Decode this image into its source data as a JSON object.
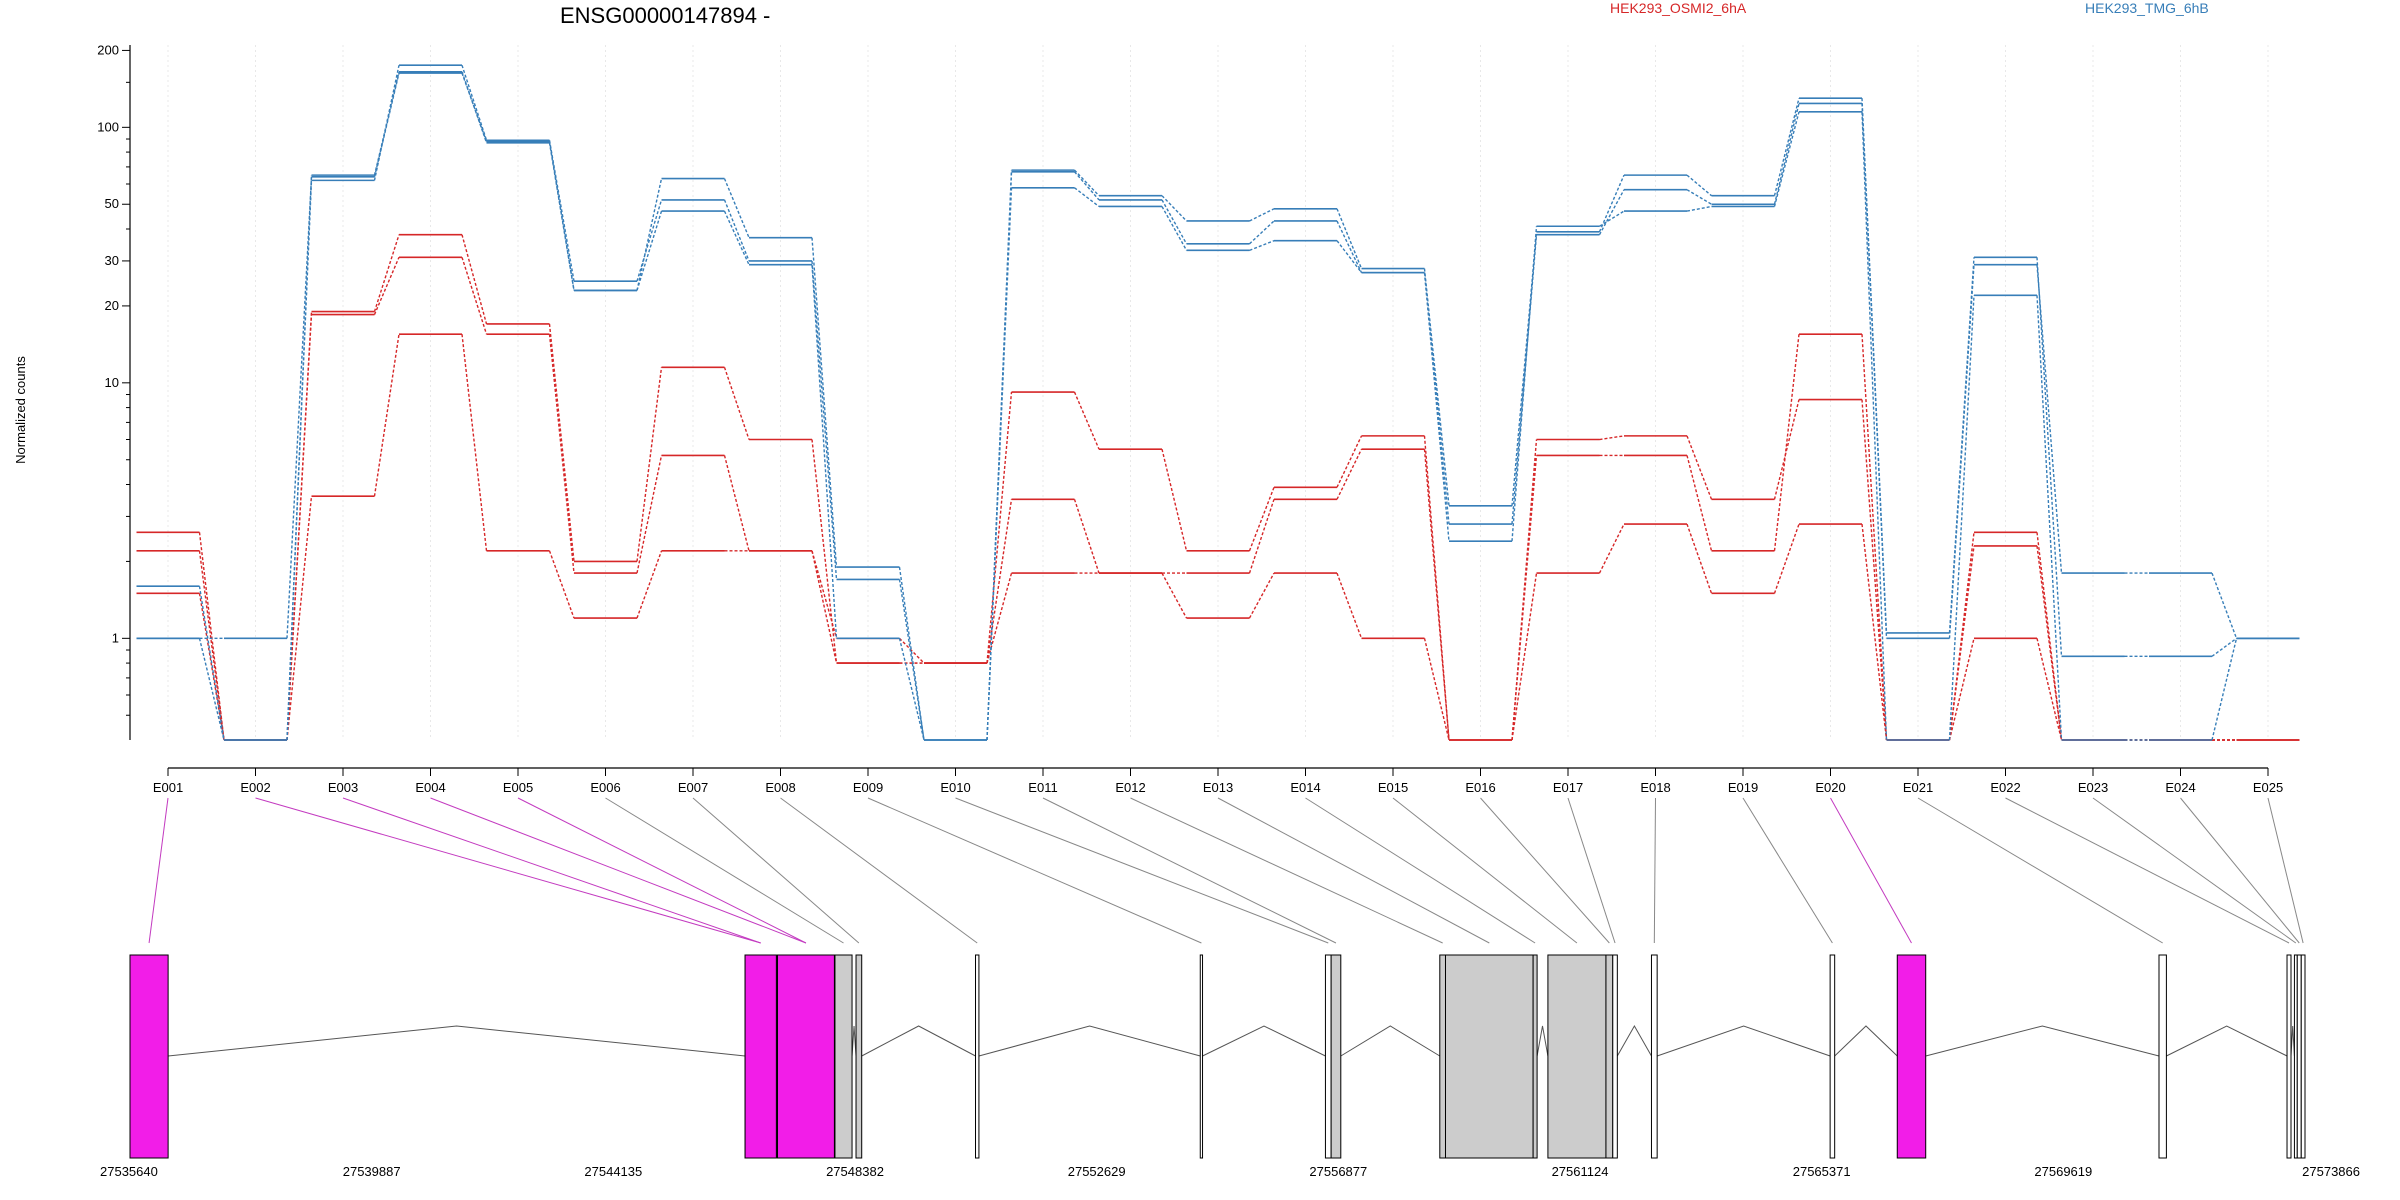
{
  "chart_data": {
    "type": "line",
    "title": "ENSG00000147894 -",
    "ylabel": "Normalized counts",
    "y_scale": "log",
    "ylim": [
      0.4,
      210
    ],
    "y_ticks": [
      1,
      10,
      20,
      30,
      50,
      100,
      200
    ],
    "grid": "vertical dotted at each exon",
    "legend": [
      {
        "name": "HEK293_OSMI2_6hA",
        "color": "#d62728",
        "position": "top-center"
      },
      {
        "name": "HEK293_TMG_6hB",
        "color": "#377eb8",
        "position": "top-right"
      }
    ],
    "categories": [
      "E001",
      "E002",
      "E003",
      "E004",
      "E005",
      "E006",
      "E007",
      "E008",
      "E009",
      "E010",
      "E011",
      "E012",
      "E013",
      "E014",
      "E015",
      "E016",
      "E017",
      "E018",
      "E019",
      "E020",
      "E021",
      "E022",
      "E023",
      "E024",
      "E025"
    ],
    "series": [
      {
        "group": "HEK293_OSMI2_6hA",
        "color": "#d62728",
        "values": [
          2.2,
          0.4,
          18.5,
          31,
          15.5,
          1.8,
          5.2,
          2.2,
          1.0,
          0.8,
          3.5,
          1.8,
          1.8,
          3.5,
          5.5,
          0.4,
          5.2,
          5.2,
          2.2,
          15.5,
          0.4,
          2.3,
          0.4,
          0.4,
          0.4
        ]
      },
      {
        "group": "HEK293_OSMI2_6hA",
        "color": "#d62728",
        "values": [
          2.6,
          0.4,
          19,
          38,
          17,
          2.0,
          11.5,
          6.0,
          0.8,
          0.8,
          9.2,
          5.5,
          2.2,
          3.9,
          6.2,
          0.4,
          6.0,
          6.2,
          3.5,
          8.6,
          0.4,
          2.6,
          0.4,
          0.4,
          0.4
        ]
      },
      {
        "group": "HEK293_OSMI2_6hA",
        "color": "#d62728",
        "values": [
          1.5,
          0.4,
          3.6,
          15.5,
          2.2,
          1.2,
          2.2,
          2.2,
          0.8,
          0.8,
          1.8,
          1.8,
          1.2,
          1.8,
          1.0,
          0.4,
          1.8,
          2.8,
          1.5,
          2.8,
          0.4,
          1.0,
          0.4,
          0.4,
          0.4
        ]
      },
      {
        "group": "HEK293_TMG_6hB",
        "color": "#377eb8",
        "values": [
          1.0,
          0.4,
          65,
          165,
          87,
          23,
          63,
          37,
          1.9,
          0.4,
          68,
          54,
          43,
          48,
          28,
          3.3,
          39,
          65,
          54,
          130,
          1.05,
          31,
          0.85,
          0.85,
          1.0
        ]
      },
      {
        "group": "HEK293_TMG_6hB",
        "color": "#377eb8",
        "values": [
          1.6,
          0.4,
          62,
          175,
          89,
          25,
          52,
          30,
          1.7,
          0.4,
          67,
          52,
          35,
          43,
          27,
          2.8,
          38,
          57,
          50,
          124,
          1.0,
          29,
          1.8,
          1.8,
          1.0
        ]
      },
      {
        "group": "HEK293_TMG_6hB",
        "color": "#377eb8",
        "values": [
          1.0,
          1.0,
          64,
          163,
          88,
          23,
          47,
          29,
          1.0,
          0.4,
          58,
          49,
          33,
          36,
          27,
          2.4,
          41,
          47,
          49,
          115,
          0.4,
          22,
          0.4,
          0.4,
          1.0
        ]
      }
    ],
    "gene_model": {
      "coordinate_ticks": [
        "27535640",
        "27539887",
        "27544135",
        "27548382",
        "27552629",
        "27556877",
        "27561124",
        "27565371",
        "27569619",
        "27573866"
      ],
      "exon_colors": {
        "highlighted": "#f21de8",
        "other": "#cccccc",
        "plain": "#ffffff"
      },
      "exons_genomic": [
        {
          "label": "E001",
          "start": 27535640,
          "end": 27536310,
          "fill": "highlighted"
        },
        {
          "label": "E002",
          "start": 27546450,
          "end": 27547000,
          "fill": "highlighted"
        },
        {
          "label": "E003",
          "start": 27546450,
          "end": 27547000,
          "fill": "highlighted"
        },
        {
          "label": "E004",
          "start": 27547020,
          "end": 27548020,
          "fill": "highlighted"
        },
        {
          "label": "E005",
          "start": 27547020,
          "end": 27548020,
          "fill": "highlighted"
        },
        {
          "label": "E006",
          "start": 27548030,
          "end": 27548330,
          "fill": "other"
        },
        {
          "label": "E007",
          "start": 27548400,
          "end": 27548500,
          "fill": "other"
        },
        {
          "label": "E008",
          "start": 27550500,
          "end": 27550560,
          "fill": "plain"
        },
        {
          "label": "E009",
          "start": 27554450,
          "end": 27554490,
          "fill": "plain"
        },
        {
          "label": "E010",
          "start": 27556650,
          "end": 27556750,
          "fill": "plain"
        },
        {
          "label": "E011",
          "start": 27556750,
          "end": 27556920,
          "fill": "other"
        },
        {
          "label": "E012",
          "start": 27558660,
          "end": 27558760,
          "fill": "other"
        },
        {
          "label": "E013",
          "start": 27558760,
          "end": 27560300,
          "fill": "other"
        },
        {
          "label": "E014",
          "start": 27560300,
          "end": 27560370,
          "fill": "other"
        },
        {
          "label": "E015",
          "start": 27560560,
          "end": 27561580,
          "fill": "other"
        },
        {
          "label": "E016",
          "start": 27561580,
          "end": 27561700,
          "fill": "other"
        },
        {
          "label": "E017",
          "start": 27561700,
          "end": 27561780,
          "fill": "plain"
        },
        {
          "label": "E018",
          "start": 27562380,
          "end": 27562480,
          "fill": "plain"
        },
        {
          "label": "E019",
          "start": 27565520,
          "end": 27565600,
          "fill": "plain"
        },
        {
          "label": "E020",
          "start": 27566700,
          "end": 27567200,
          "fill": "highlighted"
        },
        {
          "label": "E021",
          "start": 27571300,
          "end": 27571430,
          "fill": "plain"
        },
        {
          "label": "E022",
          "start": 27573550,
          "end": 27573620,
          "fill": "plain"
        },
        {
          "label": "E023",
          "start": 27573680,
          "end": 27573730,
          "fill": "plain"
        },
        {
          "label": "E024",
          "start": 27573730,
          "end": 27573800,
          "fill": "plain"
        },
        {
          "label": "E025",
          "start": 27573800,
          "end": 27573866,
          "fill": "plain"
        }
      ]
    }
  }
}
